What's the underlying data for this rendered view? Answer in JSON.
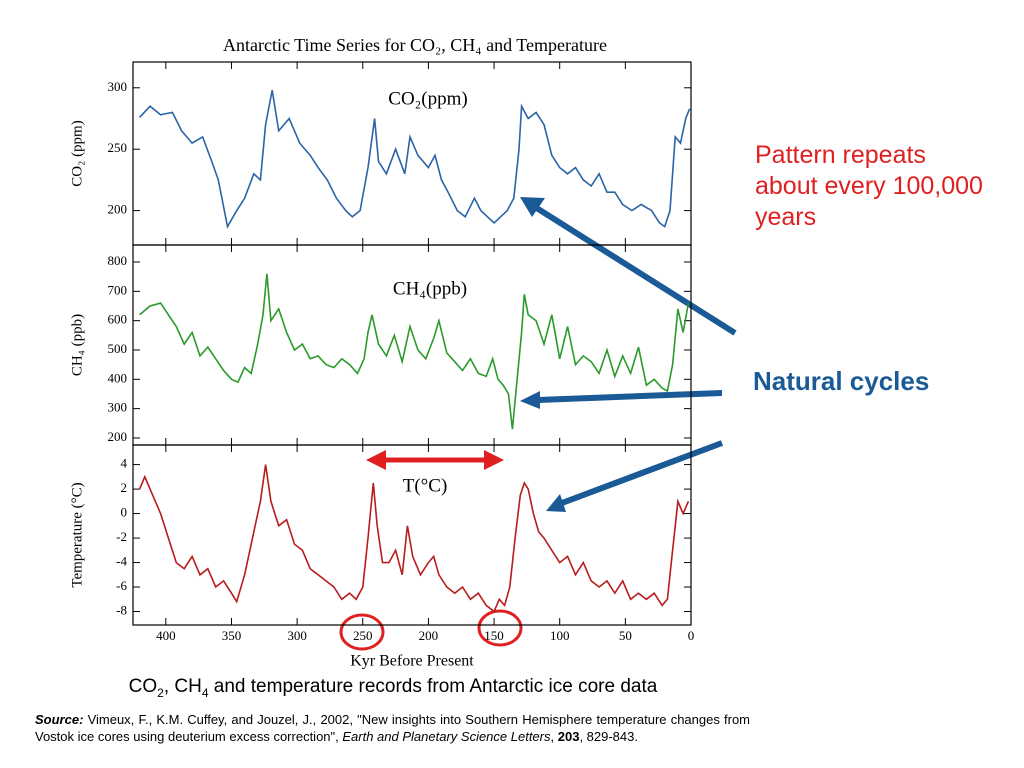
{
  "chart_data": [
    {
      "type": "line",
      "title": "Antarctic Time Series for CO₂, CH₄ and Temperature",
      "ylabel": "CO₂ (ppm)",
      "x": [
        420,
        412,
        404,
        395,
        388,
        380,
        372,
        365,
        360,
        353,
        346,
        340,
        333,
        328,
        324,
        319,
        314,
        306,
        298,
        290,
        284,
        277,
        270,
        263,
        258,
        252,
        246,
        241,
        238,
        232,
        225,
        218,
        214,
        208,
        200,
        195,
        190,
        185,
        178,
        172,
        165,
        160,
        155,
        150,
        145,
        140,
        135,
        131,
        129,
        124,
        118,
        112,
        106,
        100,
        94,
        88,
        82,
        76,
        70,
        64,
        58,
        52,
        45,
        38,
        30,
        24,
        20,
        16,
        12,
        8,
        4,
        1
      ],
      "series": [
        {
          "name": "CO₂(ppm)",
          "color": "#2a64a6",
          "values": [
            276,
            285,
            278,
            280,
            265,
            255,
            260,
            240,
            225,
            187,
            200,
            210,
            230,
            225,
            270,
            298,
            265,
            275,
            255,
            245,
            235,
            225,
            210,
            200,
            195,
            200,
            235,
            275,
            240,
            230,
            250,
            230,
            260,
            245,
            235,
            245,
            225,
            215,
            200,
            195,
            210,
            200,
            195,
            190,
            195,
            200,
            210,
            250,
            285,
            275,
            280,
            270,
            245,
            235,
            230,
            235,
            225,
            220,
            230,
            215,
            215,
            205,
            200,
            205,
            200,
            190,
            187,
            200,
            260,
            255,
            275,
            283
          ]
        }
      ],
      "xlim": [
        425,
        0
      ],
      "ylim": [
        172,
        321
      ],
      "yticks": [
        200,
        250,
        300
      ]
    },
    {
      "type": "line",
      "ylabel": "CH₄ (ppb)",
      "x": [
        420,
        412,
        404,
        398,
        392,
        386,
        380,
        374,
        368,
        362,
        356,
        350,
        345,
        340,
        335,
        330,
        326,
        323,
        320,
        314,
        308,
        302,
        296,
        290,
        284,
        278,
        272,
        266,
        260,
        254,
        249,
        246,
        243,
        238,
        232,
        226,
        220,
        214,
        208,
        202,
        196,
        192,
        186,
        180,
        174,
        168,
        162,
        156,
        151,
        147,
        143,
        139,
        136,
        132,
        129,
        127,
        124,
        118,
        112,
        106,
        100,
        94,
        88,
        82,
        76,
        70,
        64,
        58,
        52,
        46,
        40,
        34,
        28,
        22,
        18,
        14,
        10,
        6,
        2
      ],
      "series": [
        {
          "name": "CH₄(ppb)",
          "color": "#2a9a2a",
          "values": [
            620,
            650,
            660,
            620,
            580,
            520,
            560,
            480,
            510,
            470,
            430,
            400,
            390,
            440,
            420,
            520,
            620,
            760,
            600,
            640,
            560,
            500,
            520,
            470,
            480,
            450,
            440,
            470,
            450,
            420,
            470,
            560,
            620,
            520,
            480,
            550,
            460,
            580,
            500,
            470,
            540,
            600,
            490,
            460,
            430,
            470,
            420,
            410,
            470,
            400,
            380,
            350,
            230,
            420,
            560,
            690,
            620,
            600,
            520,
            620,
            470,
            580,
            450,
            480,
            460,
            420,
            500,
            410,
            480,
            420,
            510,
            380,
            400,
            370,
            360,
            450,
            640,
            560,
            660
          ]
        }
      ],
      "xlim": [
        425,
        0
      ],
      "ylim": [
        176,
        858
      ],
      "yticks": [
        200,
        300,
        400,
        500,
        600,
        700,
        800
      ]
    },
    {
      "type": "line",
      "ylabel": "Temperature (°C)",
      "xlabel": "Kyr Before Present",
      "x": [
        420,
        416,
        410,
        404,
        398,
        392,
        386,
        380,
        374,
        368,
        362,
        356,
        350,
        346,
        340,
        334,
        328,
        324,
        320,
        314,
        308,
        302,
        296,
        290,
        284,
        278,
        272,
        266,
        260,
        255,
        250,
        246,
        242,
        239,
        235,
        230,
        225,
        220,
        216,
        212,
        206,
        200,
        196,
        192,
        186,
        180,
        174,
        168,
        162,
        156,
        150,
        146,
        142,
        138,
        134,
        130,
        127,
        124,
        120,
        116,
        112,
        106,
        100,
        94,
        88,
        82,
        76,
        70,
        64,
        58,
        52,
        46,
        40,
        34,
        28,
        22,
        18,
        14,
        10,
        6,
        2
      ],
      "series": [
        {
          "name": "T(°C)",
          "color": "#b81c1c",
          "values": [
            2,
            3,
            1.5,
            0,
            -2,
            -4,
            -4.5,
            -3.5,
            -5,
            -4.5,
            -6,
            -5.5,
            -6.5,
            -7.2,
            -5,
            -2,
            1,
            4,
            1,
            -1,
            -0.5,
            -2.5,
            -3,
            -4.5,
            -5,
            -5.5,
            -6,
            -7,
            -6.5,
            -7,
            -6,
            -2,
            2.5,
            -1,
            -4,
            -4,
            -3,
            -5,
            -1,
            -3.5,
            -5,
            -4,
            -3.5,
            -5,
            -6,
            -6.5,
            -6,
            -7,
            -6.5,
            -7.5,
            -8,
            -7,
            -7.5,
            -6,
            -2,
            1.5,
            2.5,
            2,
            0,
            -1.5,
            -2,
            -3,
            -4,
            -3.5,
            -5,
            -4,
            -5.5,
            -6,
            -5.5,
            -6.5,
            -5.5,
            -7,
            -6.5,
            -7,
            -6.5,
            -7.5,
            -7,
            -3,
            1,
            0,
            1
          ]
        }
      ],
      "xlim": [
        425,
        0
      ],
      "ylim": [
        -9.1,
        5.6
      ],
      "yticks": [
        -8,
        -6,
        -4,
        -2,
        0,
        2,
        4
      ],
      "xticks": [
        400,
        350,
        300,
        250,
        200,
        150,
        100,
        50,
        0
      ]
    }
  ],
  "annotations": {
    "pattern": "Pattern repeats about every 100,000 years",
    "cycles": "Natural cycles"
  },
  "caption": {
    "before": "CO",
    "sub1": "2",
    "mid": ", CH",
    "sub2": "4",
    "after": " and temperature records from Antarctic ice core data"
  },
  "source": {
    "label": "Source:",
    "text": " Vimeux, F., K.M. Cuffey, and Jouzel, J., 2002, \"New insights into Southern Hemisphere temperature changes from Vostok ice cores using deuterium excess correction\", ",
    "journal": "Earth and Planetary Science Letters",
    "sep": ", ",
    "volume": "203",
    "pages": ", 829-843."
  }
}
